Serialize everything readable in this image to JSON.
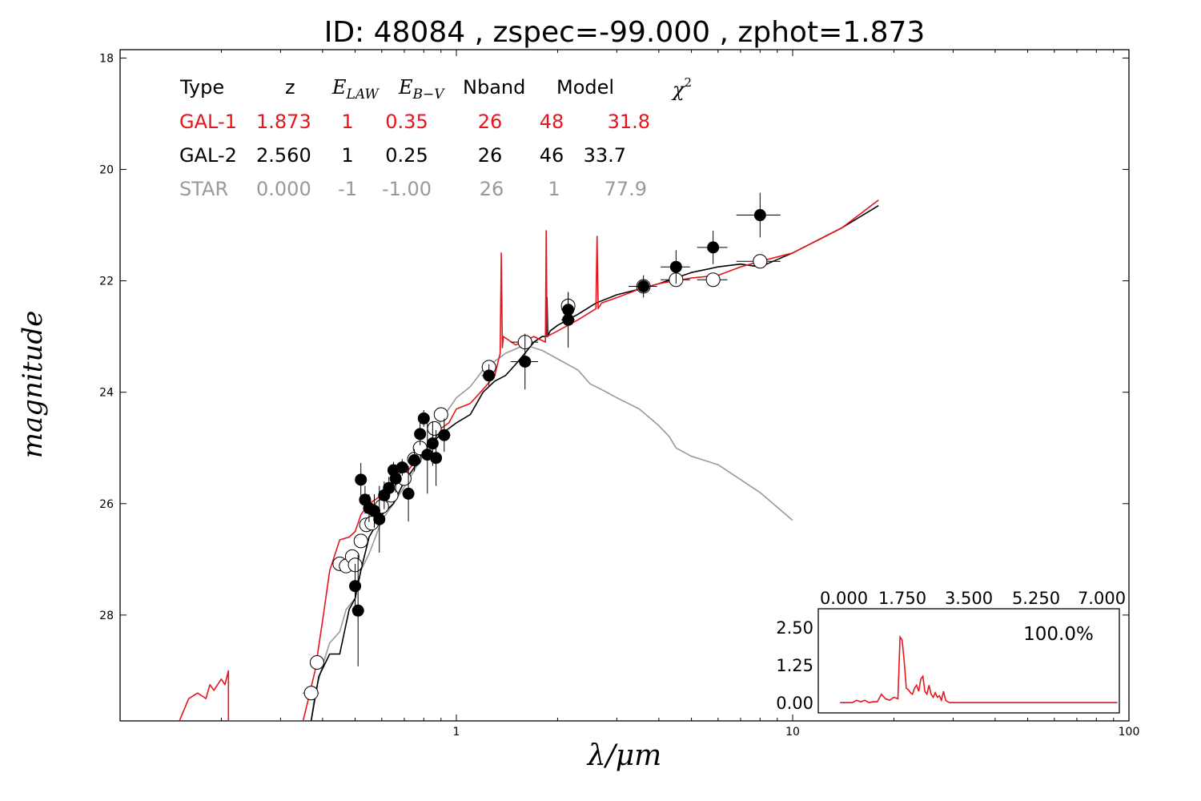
{
  "title": "ID:  48084 , zspec=-99.000 , zphot=1.873",
  "colors": {
    "gal1": "#e8141b",
    "gal2": "#000000",
    "star": "#999999"
  },
  "table": {
    "headers": {
      "type": "Type",
      "z": "z",
      "elaw_main": "E",
      "elaw_sub": "LAW",
      "ebv_main": "E",
      "ebv_sub": "B−V",
      "nband": "Nband",
      "model": "Model",
      "chi_main": "χ",
      "chi_sup": "2"
    },
    "rows": [
      {
        "type": "GAL-1",
        "z": "1.873",
        "elaw": "1",
        "ebv": "0.35",
        "nband": "26",
        "model": "48",
        "chi2": "31.8"
      },
      {
        "type": "GAL-2",
        "z": "2.560",
        "elaw": "1",
        "ebv": "0.25",
        "nband": "26",
        "model": "46",
        "chi2": "33.7"
      },
      {
        "type": "STAR",
        "z": "0.000",
        "elaw": "-1",
        "ebv": "-1.00",
        "nband": "26",
        "model": "1",
        "chi2": "77.9"
      }
    ]
  },
  "chart_data": {
    "type": "scatter",
    "xlabel": "λ/μm",
    "ylabel": "magnitude",
    "xscale": "log",
    "xlim": [
      0.1,
      100
    ],
    "ylim": [
      29.9,
      17.85
    ],
    "yaxis_inverted": true,
    "xticks": [
      1,
      10,
      100
    ],
    "yticks": [
      18,
      20,
      22,
      24,
      26,
      28
    ],
    "observed_points": [
      {
        "x": 0.52,
        "y": 25.57,
        "xerr": 0.01,
        "yerr": 0.3
      },
      {
        "x": 0.535,
        "y": 25.93,
        "xerr": 0.02,
        "yerr": 0.25
      },
      {
        "x": 0.55,
        "y": 26.08,
        "xerr": 0.02,
        "yerr": 0.25
      },
      {
        "x": 0.57,
        "y": 26.13,
        "xerr": 0.02,
        "yerr": 0.3
      },
      {
        "x": 0.59,
        "y": 26.28,
        "xerr": 0.02,
        "yerr": 0.6
      },
      {
        "x": 0.61,
        "y": 25.85,
        "xerr": 0.02,
        "yerr": 0.25
      },
      {
        "x": 0.63,
        "y": 25.72,
        "xerr": 0.02,
        "yerr": 0.2
      },
      {
        "x": 0.65,
        "y": 25.4,
        "xerr": 0.02,
        "yerr": 0.15
      },
      {
        "x": 0.66,
        "y": 25.55,
        "xerr": 0.02,
        "yerr": 0.25
      },
      {
        "x": 0.69,
        "y": 25.35,
        "xerr": 0.02,
        "yerr": 0.15
      },
      {
        "x": 0.72,
        "y": 25.82,
        "xerr": 0.02,
        "yerr": 0.5
      },
      {
        "x": 0.75,
        "y": 25.22,
        "xerr": 0.03,
        "yerr": 0.2
      },
      {
        "x": 0.78,
        "y": 24.75,
        "xerr": 0.03,
        "yerr": 0.2
      },
      {
        "x": 0.8,
        "y": 24.47,
        "xerr": 0.03,
        "yerr": 0.15
      },
      {
        "x": 0.82,
        "y": 25.12,
        "xerr": 0.03,
        "yerr": 0.7
      },
      {
        "x": 0.85,
        "y": 24.92,
        "xerr": 0.03,
        "yerr": 0.4
      },
      {
        "x": 0.87,
        "y": 25.18,
        "xerr": 0.03,
        "yerr": 0.5
      },
      {
        "x": 0.92,
        "y": 24.77,
        "xerr": 0.04,
        "yerr": 0.3
      },
      {
        "x": 0.5,
        "y": 27.48,
        "xerr": 0.01,
        "yerr": 0.4
      },
      {
        "x": 0.51,
        "y": 27.92,
        "xerr": 0.01,
        "yerr": 1.0
      },
      {
        "x": 1.25,
        "y": 23.7,
        "xerr": 0.06,
        "yerr": 0.2
      },
      {
        "x": 1.6,
        "y": 23.45,
        "xerr": 0.15,
        "yerr": 0.5
      },
      {
        "x": 2.15,
        "y": 22.7,
        "xerr": 0.1,
        "yerr": 0.5
      },
      {
        "x": 2.15,
        "y": 22.52,
        "xerr": 0.1,
        "yerr": 0.3
      },
      {
        "x": 3.6,
        "y": 22.1,
        "xerr": 0.35,
        "yerr": 0.2
      },
      {
        "x": 4.5,
        "y": 21.75,
        "xerr": 0.45,
        "yerr": 0.3
      },
      {
        "x": 5.8,
        "y": 21.4,
        "xerr": 0.6,
        "yerr": 0.3
      },
      {
        "x": 8.0,
        "y": 20.82,
        "xerr": 1.2,
        "yerr": 0.4
      }
    ],
    "model_points": [
      {
        "x": 0.37,
        "y": 29.4,
        "xerr": 0.02
      },
      {
        "x": 0.385,
        "y": 28.85,
        "xerr": 0.01
      },
      {
        "x": 0.45,
        "y": 27.08,
        "xerr": 0.02
      },
      {
        "x": 0.47,
        "y": 27.12,
        "xerr": 0.02
      },
      {
        "x": 0.49,
        "y": 26.95,
        "xerr": 0.01
      },
      {
        "x": 0.5,
        "y": 27.1,
        "xerr": 0.01
      },
      {
        "x": 0.52,
        "y": 26.67,
        "xerr": 0.02
      },
      {
        "x": 0.54,
        "y": 26.38,
        "xerr": 0.02
      },
      {
        "x": 0.56,
        "y": 26.35,
        "xerr": 0.02
      },
      {
        "x": 0.6,
        "y": 26.05,
        "xerr": 0.02
      },
      {
        "x": 0.64,
        "y": 25.85,
        "xerr": 0.02
      },
      {
        "x": 0.7,
        "y": 25.55,
        "xerr": 0.02
      },
      {
        "x": 0.75,
        "y": 25.2,
        "xerr": 0.03
      },
      {
        "x": 0.78,
        "y": 25.0,
        "xerr": 0.03
      },
      {
        "x": 0.86,
        "y": 24.65,
        "xerr": 0.03
      },
      {
        "x": 0.9,
        "y": 24.4,
        "xerr": 0.04
      },
      {
        "x": 1.25,
        "y": 23.55,
        "xerr": 0.06
      },
      {
        "x": 1.6,
        "y": 23.1,
        "xerr": 0.15
      },
      {
        "x": 2.15,
        "y": 22.45,
        "xerr": 0.1
      },
      {
        "x": 3.6,
        "y": 22.1,
        "xerr": 0.35
      },
      {
        "x": 4.5,
        "y": 21.98,
        "xerr": 0.45
      },
      {
        "x": 5.8,
        "y": 21.98,
        "xerr": 0.6
      },
      {
        "x": 8.0,
        "y": 21.65,
        "xerr": 1.2
      }
    ],
    "series": [
      {
        "name": "GAL-1",
        "color": "#e8141b",
        "x": [
          0.15,
          0.16,
          0.17,
          0.18,
          0.185,
          0.19,
          0.2,
          0.205,
          0.21,
          0.21,
          0.35,
          0.36,
          0.38,
          0.4,
          0.42,
          0.45,
          0.48,
          0.5,
          0.52,
          0.55,
          0.6,
          0.65,
          0.7,
          0.75,
          0.8,
          0.85,
          0.9,
          0.95,
          1.0,
          1.1,
          1.2,
          1.3,
          1.35,
          1.36,
          1.37,
          1.38,
          1.5,
          1.7,
          1.84,
          1.85,
          1.86,
          2.0,
          2.3,
          2.6,
          2.62,
          2.64,
          2.7,
          3.0,
          3.5,
          4.0,
          5.0,
          6.0,
          7.0,
          8.0,
          10.0,
          14.0,
          18.0
        ],
        "y": [
          29.9,
          29.5,
          29.4,
          29.5,
          29.25,
          29.35,
          29.15,
          29.25,
          29.0,
          29.9,
          29.9,
          29.6,
          29.0,
          28.1,
          27.2,
          26.65,
          26.6,
          26.5,
          26.2,
          26.0,
          25.85,
          25.7,
          25.5,
          25.25,
          25.0,
          24.9,
          24.65,
          24.55,
          24.3,
          24.2,
          23.95,
          23.7,
          23.3,
          21.5,
          23.2,
          23.0,
          23.15,
          23.0,
          23.1,
          21.1,
          23.0,
          22.9,
          22.7,
          22.5,
          21.2,
          22.5,
          22.4,
          22.3,
          22.15,
          22.05,
          21.95,
          21.9,
          21.75,
          21.65,
          21.5,
          21.05,
          20.55
        ]
      },
      {
        "name": "GAL-2",
        "color": "#000000",
        "x": [
          0.37,
          0.39,
          0.42,
          0.45,
          0.48,
          0.5,
          0.52,
          0.55,
          0.6,
          0.65,
          0.7,
          0.75,
          0.8,
          0.85,
          0.9,
          0.95,
          1.0,
          1.1,
          1.2,
          1.3,
          1.4,
          1.5,
          1.6,
          1.7,
          1.8,
          1.85,
          1.86,
          1.87,
          1.9,
          2.0,
          2.3,
          2.6,
          3.0,
          3.5,
          4.0,
          5.0,
          6.0,
          7.0,
          8.0,
          10.0,
          14.0,
          18.0
        ],
        "y": [
          29.9,
          29.1,
          28.7,
          28.7,
          27.9,
          27.7,
          27.2,
          26.6,
          26.2,
          26.0,
          25.6,
          25.35,
          25.05,
          24.9,
          24.75,
          24.65,
          24.55,
          24.4,
          24.0,
          23.8,
          23.7,
          23.5,
          23.3,
          23.1,
          23.0,
          23.0,
          22.3,
          23.0,
          22.9,
          22.8,
          22.6,
          22.4,
          22.25,
          22.15,
          22.05,
          21.85,
          21.75,
          21.7,
          21.75,
          21.5,
          21.05,
          20.65
        ]
      },
      {
        "name": "STAR",
        "color": "#999999",
        "x": [
          0.37,
          0.38,
          0.4,
          0.42,
          0.45,
          0.47,
          0.5,
          0.52,
          0.55,
          0.6,
          0.65,
          0.7,
          0.75,
          0.8,
          0.85,
          0.9,
          1.0,
          1.1,
          1.2,
          1.4,
          1.6,
          1.8,
          2.0,
          2.3,
          2.5,
          2.7,
          3.0,
          3.5,
          4.0,
          4.3,
          4.5,
          5.0,
          6.0,
          8.0,
          10.0
        ],
        "y": [
          29.9,
          29.4,
          28.9,
          28.5,
          28.3,
          27.9,
          27.7,
          27.2,
          26.9,
          26.3,
          26.0,
          25.7,
          25.4,
          25.1,
          24.8,
          24.5,
          24.1,
          23.9,
          23.6,
          23.3,
          23.15,
          23.25,
          23.4,
          23.6,
          23.85,
          23.95,
          24.1,
          24.3,
          24.6,
          24.8,
          25.0,
          25.15,
          25.3,
          25.8,
          26.3
        ]
      }
    ],
    "inset": {
      "type": "line",
      "label": "100.0%",
      "xlim": [
        0,
        7
      ],
      "ylim": [
        -0.2,
        2.65
      ],
      "xticks": [
        "0.000",
        "1.750",
        "3.500",
        "5.250",
        "7.000"
      ],
      "yticks": [
        "0.00",
        "1.25",
        "2.50"
      ],
      "color": "#e8141b",
      "x": [
        0.1,
        0.4,
        0.5,
        0.6,
        0.7,
        0.8,
        0.9,
        1.0,
        1.1,
        1.2,
        1.3,
        1.4,
        1.5,
        1.55,
        1.6,
        1.65,
        1.7,
        1.75,
        1.8,
        1.85,
        1.9,
        1.95,
        2.0,
        2.05,
        2.1,
        2.15,
        2.2,
        2.25,
        2.3,
        2.35,
        2.4,
        2.45,
        2.5,
        2.55,
        2.6,
        2.65,
        2.7,
        2.75,
        2.8,
        3.0,
        4.0,
        5.0,
        6.0,
        6.8
      ],
      "y": [
        0.02,
        0.02,
        0.1,
        0.05,
        0.1,
        0.02,
        0.05,
        0.05,
        0.3,
        0.15,
        0.1,
        0.2,
        0.15,
        2.2,
        2.1,
        1.4,
        0.5,
        0.45,
        0.35,
        0.3,
        0.5,
        0.6,
        0.4,
        0.8,
        0.9,
        0.4,
        0.3,
        0.6,
        0.3,
        0.2,
        0.35,
        0.2,
        0.25,
        0.1,
        0.4,
        0.1,
        0.05,
        0.02,
        0.02,
        0.02,
        0.02,
        0.02,
        0.02,
        0.02
      ]
    }
  }
}
